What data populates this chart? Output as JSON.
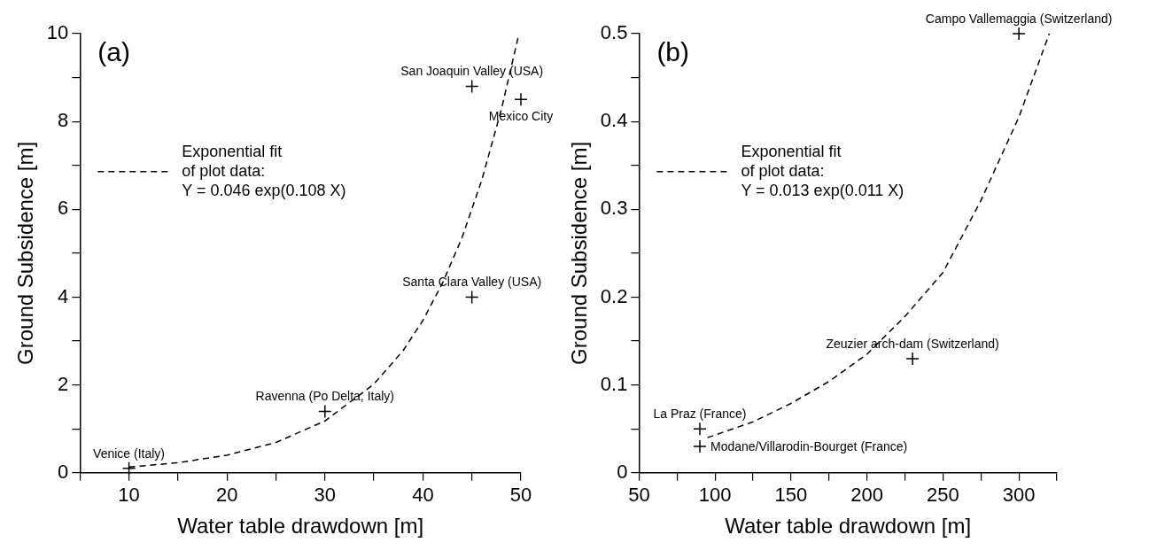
{
  "chart_data": [
    {
      "type": "scatter",
      "title": "(a)",
      "xlabel": "Water table drawdown [m]",
      "ylabel": "Ground Subsidence [m]",
      "xlim": [
        5,
        50
      ],
      "xticks": [
        {
          "value": 5,
          "label": null
        },
        10,
        {
          "value": 15,
          "label": null
        },
        20,
        {
          "value": 25,
          "label": null
        },
        30,
        {
          "value": 35,
          "label": null
        },
        40,
        {
          "value": 45,
          "label": null
        },
        50
      ],
      "ylim": [
        0,
        10
      ],
      "yticks": [
        0,
        {
          "value": 1,
          "label": null
        },
        2,
        {
          "value": 3,
          "label": null
        },
        4,
        {
          "value": 5,
          "label": null
        },
        6,
        {
          "value": 7,
          "label": null
        },
        8,
        {
          "value": 9,
          "label": null
        },
        10
      ],
      "grid": false,
      "legend": "top left",
      "line_style": "dashed",
      "series": [
        {
          "marker": "cross",
          "color": "#000000",
          "x": [
            10,
            30,
            45,
            45,
            50
          ],
          "values": [
            0.1,
            1.4,
            4,
            8.8,
            8.5
          ]
        },
        {
          "type": "line",
          "marker": "none",
          "name": "Exponential fit\nof plot data:\nY = 0.046 exp(0.108 X)",
          "color": "#000000",
          "x": [
            10,
            15,
            20,
            25,
            30,
            35,
            38,
            40,
            42,
            44,
            46,
            48,
            49.7
          ],
          "values": [
            0.13,
            0.23,
            0.4,
            0.69,
            1.18,
            2.02,
            2.79,
            3.47,
            4.32,
            5.36,
            6.66,
            8.27,
            9.9
          ]
        }
      ],
      "annotations": [
        {
          "text": "Venice (Italy)",
          "x": 10,
          "y": 0.1
        },
        {
          "text": "Ravenna (Po Delta, Italy)",
          "x": 30,
          "y": 1.4
        },
        {
          "text": "Santa Clara Valley (USA)",
          "x": 45,
          "y": 4
        },
        {
          "text": "San Joaquin Valley (USA)",
          "x": 45,
          "y": 8.8
        },
        {
          "text": "Mexico City",
          "x": 50,
          "y": 8.5
        }
      ]
    },
    {
      "type": "scatter",
      "title": "(b)",
      "xlabel": "Water table drawdown [m]",
      "ylabel": "Ground Subsidence [m]",
      "xlim": [
        50,
        325
      ],
      "xticks": [
        50,
        {
          "value": 75,
          "label": null
        },
        100,
        {
          "value": 125,
          "label": null
        },
        150,
        {
          "value": 175,
          "label": null
        },
        200,
        {
          "value": 225,
          "label": null
        },
        250,
        {
          "value": 275,
          "label": null
        },
        300,
        {
          "value": 325,
          "label": null
        }
      ],
      "ylim": [
        0,
        0.5
      ],
      "yticks": [
        0,
        {
          "value": 0.05,
          "label": null
        },
        0.1,
        {
          "value": 0.15,
          "label": null
        },
        0.2,
        {
          "value": 0.25,
          "label": null
        },
        0.3,
        {
          "value": 0.35,
          "label": null
        },
        0.4,
        {
          "value": 0.45,
          "label": null
        },
        0.5
      ],
      "grid": false,
      "legend": "top left",
      "line_style": "dashed",
      "series": [
        {
          "marker": "cross",
          "color": "#000000",
          "x": [
            90,
            90,
            230,
            300
          ],
          "values": [
            0.05,
            0.03,
            0.13,
            0.5
          ]
        },
        {
          "type": "line",
          "marker": "none",
          "name": "Exponential fit\nof plot data:\nY = 0.013 exp(0.011 X)",
          "color": "#000000",
          "x": [
            95,
            125,
            150,
            175,
            200,
            225,
            250,
            275,
            300,
            320
          ],
          "values": [
            0.04,
            0.058,
            0.079,
            0.104,
            0.135,
            0.178,
            0.228,
            0.31,
            0.405,
            0.5
          ]
        }
      ],
      "annotations": [
        {
          "text": "La Praz (France)",
          "x": 90,
          "y": 0.05
        },
        {
          "text": "Modane/Villarodin-Bourget (France)",
          "x": 90,
          "y": 0.03
        },
        {
          "text": "Zeuzier arch-dam (Switzerland)",
          "x": 230,
          "y": 0.13
        },
        {
          "text": "Campo Vallemaggia (Switzerland)",
          "x": 300,
          "y": 0.5
        }
      ]
    }
  ]
}
